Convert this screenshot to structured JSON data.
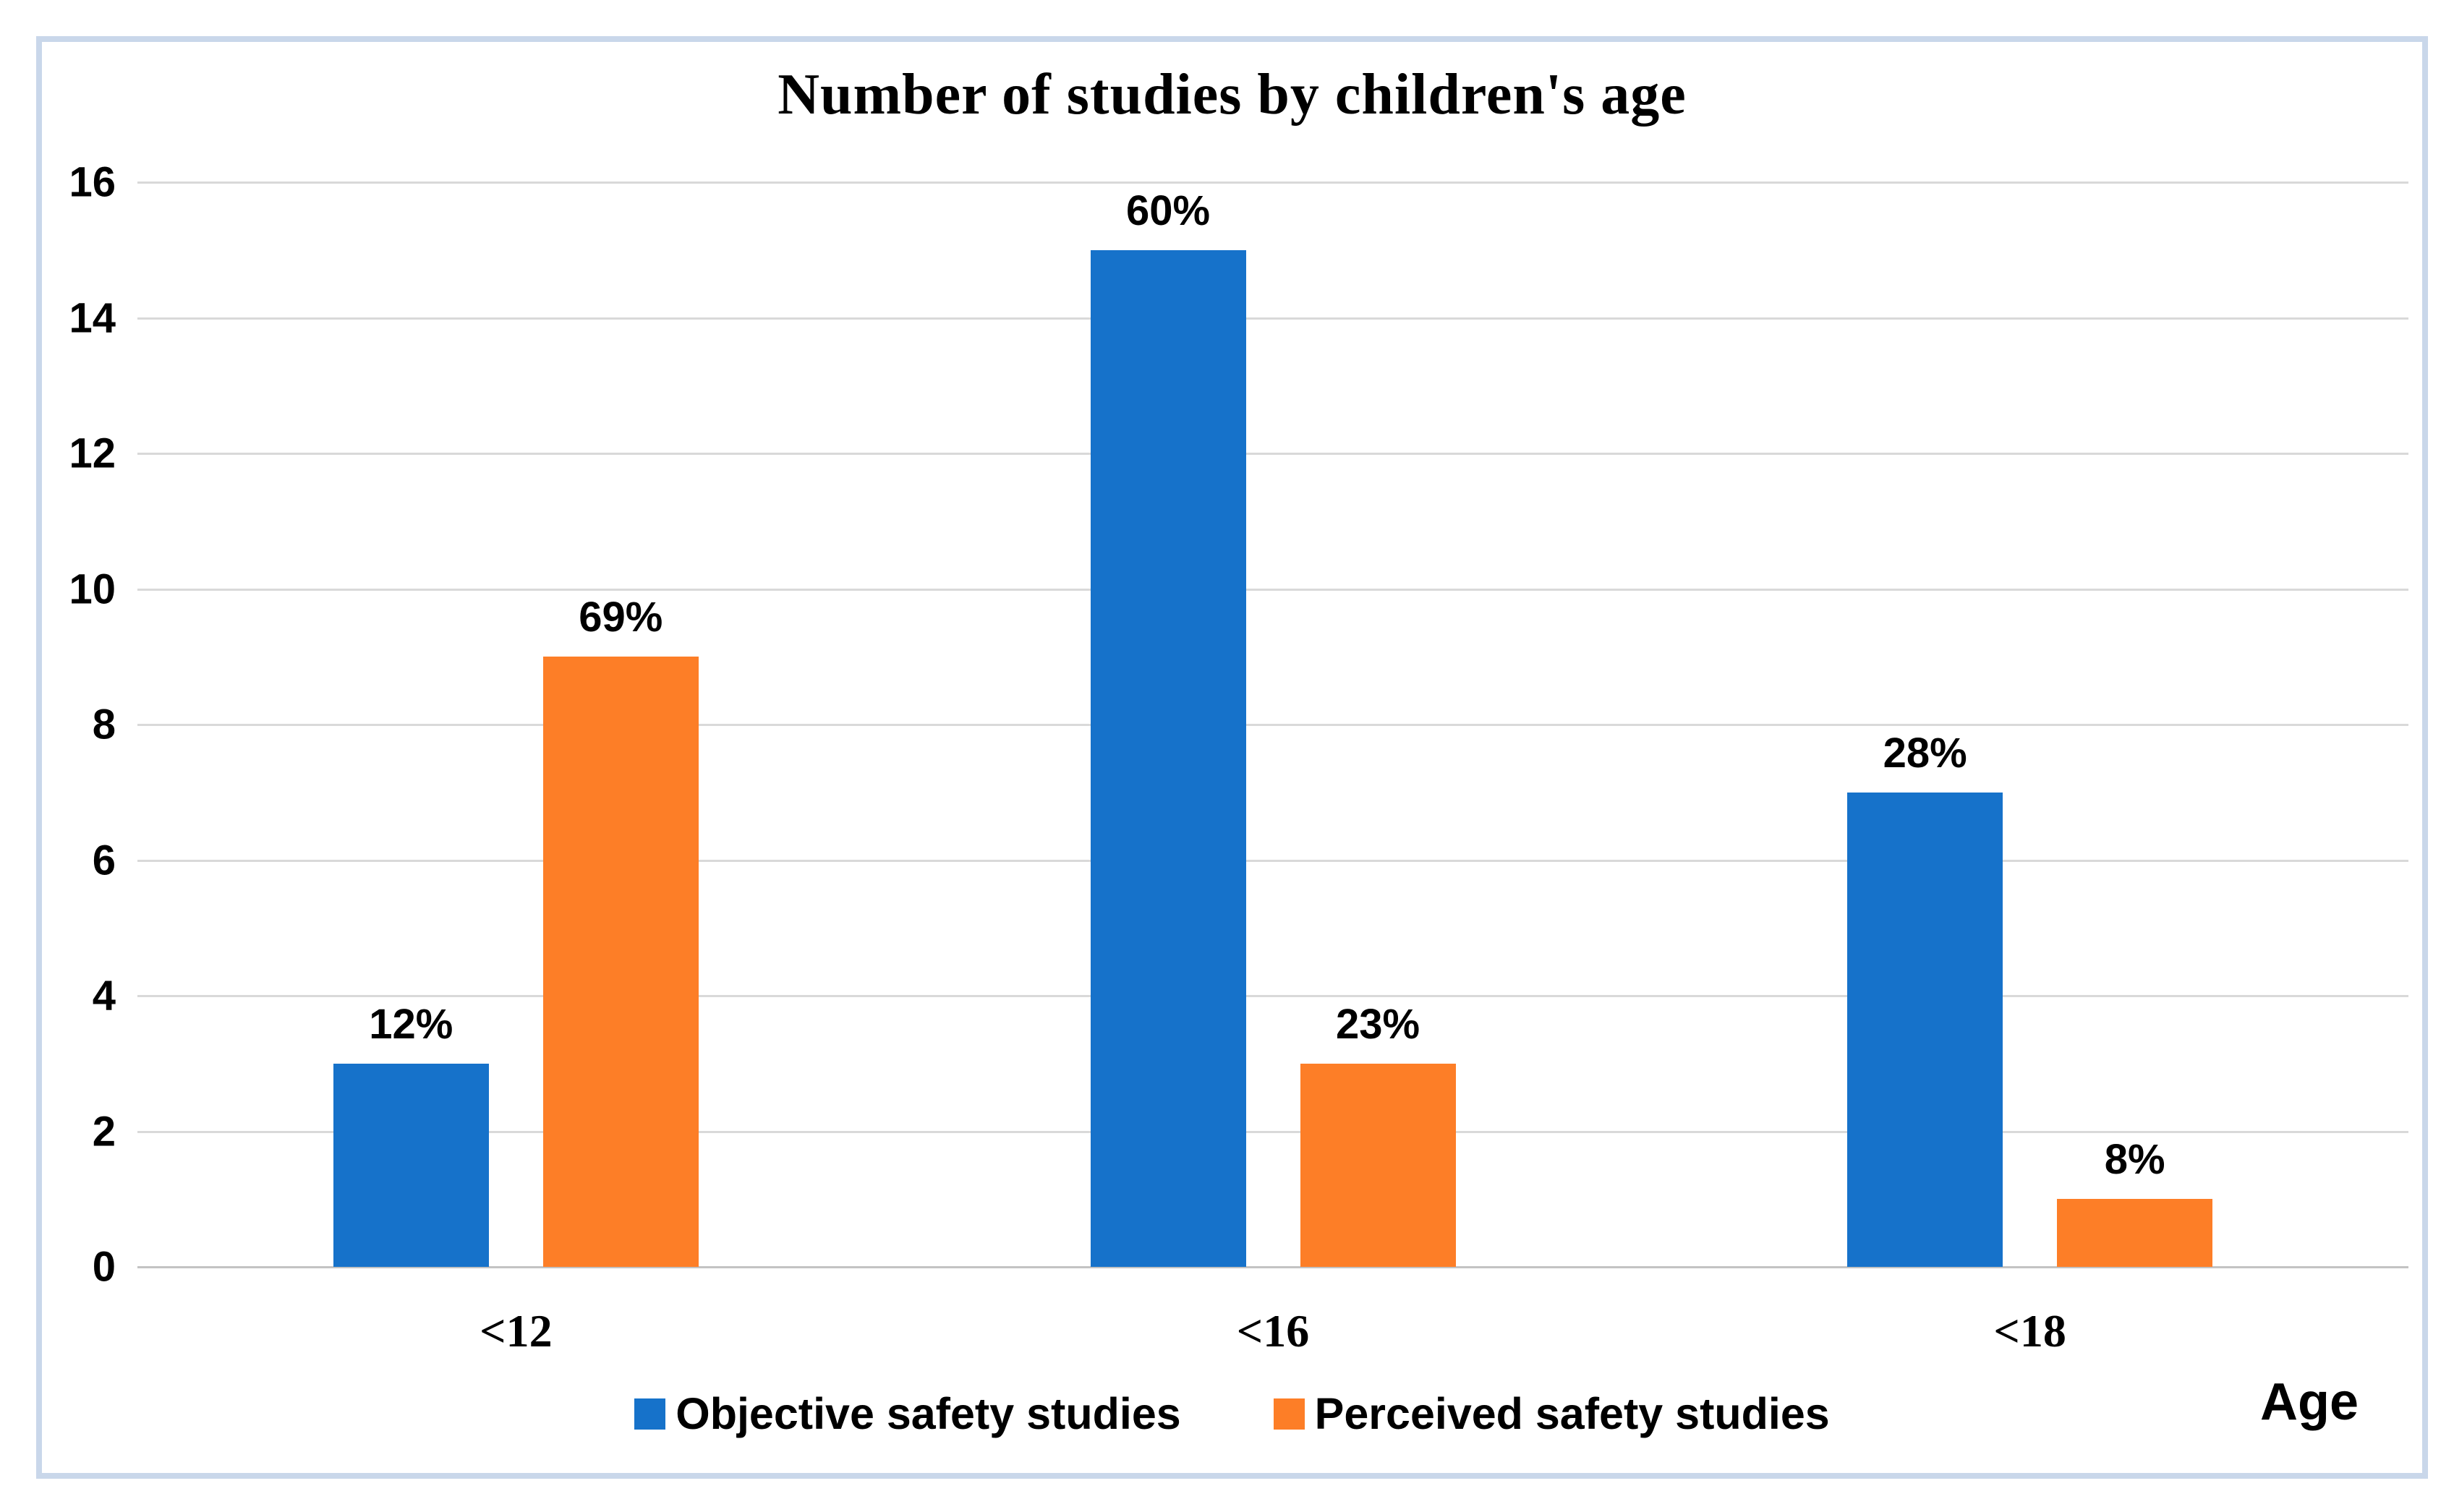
{
  "chart_data": {
    "type": "bar",
    "title": "Number of studies by children's age",
    "categories": [
      "<12",
      "<16",
      "<18"
    ],
    "series": [
      {
        "name": "Objective safety studies",
        "color": "#1672ca",
        "values": [
          3,
          15,
          7
        ],
        "labels": [
          "12%",
          "60%",
          "28%"
        ]
      },
      {
        "name": "Perceived safety studies",
        "color": "#fd7e27",
        "values": [
          9,
          3,
          1
        ],
        "labels": [
          "69%",
          "23%",
          "8%"
        ]
      }
    ],
    "xlabel": "Age",
    "ylabel": "",
    "ylim": [
      0,
      16
    ],
    "y_ticks": [
      0,
      2,
      4,
      6,
      8,
      10,
      12,
      14,
      16
    ],
    "grid": true,
    "legend_position": "bottom"
  },
  "colors": {
    "series_blue": "#1672ca",
    "series_orange": "#fd7e27",
    "gridline": "#d9d9d9",
    "baseline": "#c3c3c3",
    "panel_border": "#c9d7ea",
    "text": "#000000"
  }
}
